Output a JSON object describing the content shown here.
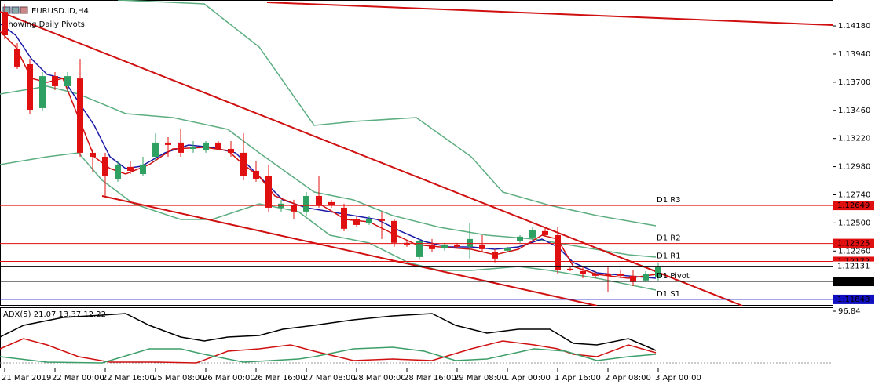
{
  "chart_data": {
    "type": "candlestick",
    "title": "EURUSD.ID,H4",
    "subtitle": "Showing Daily Pivots.",
    "categories": [
      "21 Mar 2019",
      null,
      null,
      null,
      "22 Mar 00:00",
      null,
      null,
      null,
      "22 Mar 16:00",
      null,
      null,
      null,
      "25 Mar 08:00",
      null,
      null,
      null,
      "26 Mar 00:00",
      null,
      null,
      null,
      "26 Mar 16:00",
      null,
      null,
      null,
      "27 Mar 08:00",
      null,
      null,
      null,
      "28 Mar 00:00",
      null,
      null,
      null,
      "28 Mar 16:00",
      null,
      null,
      null,
      "29 Mar 08:00",
      null,
      null,
      null,
      "1 Apr 00:00",
      null,
      null,
      null,
      "1 Apr 16:00",
      null,
      null,
      null,
      "2 Apr 08:00",
      null,
      null,
      null,
      "3 Apr 00:00"
    ],
    "open": [
      1.143,
      1.13986,
      1.13853,
      1.13479,
      1.13752,
      1.13666,
      1.13732,
      1.13098,
      1.13064,
      1.12877,
      1.12978,
      1.12917,
      1.13064,
      1.13185,
      1.13185,
      1.13131,
      1.13118,
      1.13185,
      1.13131,
      1.13098,
      1.12944,
      1.12897,
      1.1263,
      1.1265,
      1.12597,
      1.1273,
      1.12677,
      1.1263,
      1.1253,
      1.12497,
      1.1253,
      1.12517,
      1.1233,
      1.12209,
      1.12316,
      1.12283,
      1.12316,
      1.12296,
      1.12316,
      1.12249,
      1.12263,
      1.12343,
      1.12376,
      1.1243,
      1.12396,
      1.12109,
      1.12089,
      1.12062,
      1.12062,
      1.12062,
      1.12049,
      1.12009,
      1.12042
    ],
    "high": [
      1.14367,
      1.14033,
      1.13899,
      1.13786,
      1.13786,
      1.13786,
      1.13899,
      1.13131,
      1.13098,
      1.13031,
      1.13031,
      1.13064,
      1.13265,
      1.13231,
      1.13298,
      1.13198,
      1.13198,
      1.13198,
      1.13198,
      1.13265,
      1.13031,
      1.12998,
      1.12697,
      1.12697,
      1.12764,
      1.12897,
      1.12697,
      1.12664,
      1.12563,
      1.12563,
      1.12597,
      1.1253,
      1.12343,
      1.12363,
      1.12363,
      1.1233,
      1.1233,
      1.12497,
      1.12396,
      1.12276,
      1.12296,
      1.12396,
      1.12463,
      1.12463,
      1.12463,
      1.12129,
      1.12129,
      1.12089,
      1.12129,
      1.12096,
      1.12096,
      1.12089,
      1.12163
    ],
    "low": [
      1.14066,
      1.13813,
      1.13432,
      1.13452,
      1.13632,
      1.13632,
      1.13064,
      1.12931,
      1.1273,
      1.12851,
      1.12917,
      1.12897,
      1.13031,
      1.13064,
      1.13064,
      1.13098,
      1.13098,
      1.13118,
      1.13064,
      1.12864,
      1.12851,
      1.12597,
      1.12597,
      1.1253,
      1.12563,
      1.1263,
      1.1263,
      1.1243,
      1.12463,
      1.12483,
      1.12363,
      1.12296,
      1.12296,
      1.12183,
      1.12249,
      1.12263,
      1.12283,
      1.12196,
      1.12249,
      1.12163,
      1.12249,
      1.1233,
      1.12343,
      1.12383,
      1.12062,
      1.12089,
      1.12029,
      1.12029,
      1.11915,
      1.12029,
      1.11962,
      1.11996,
      1.12009
    ],
    "close": [
      1.141,
      1.13833,
      1.13465,
      1.13752,
      1.13666,
      1.13752,
      1.13098,
      1.13064,
      1.12897,
      1.12998,
      1.12944,
      1.12998,
      1.13185,
      1.13165,
      1.13098,
      1.13151,
      1.13185,
      1.13131,
      1.13098,
      1.12897,
      1.12877,
      1.1263,
      1.12664,
      1.12597,
      1.1273,
      1.1265,
      1.1265,
      1.1245,
      1.12483,
      1.1253,
      1.12517,
      1.1233,
      1.12316,
      1.12343,
      1.12276,
      1.12316,
      1.12296,
      1.12363,
      1.12276,
      1.12196,
      1.12289,
      1.12383,
      1.12437,
      1.12396,
      1.12096,
      1.12096,
      1.12062,
      1.12049,
      1.12049,
      1.12049,
      1.11996,
      1.12062,
      1.12129
    ],
    "up_color": "#2ea062",
    "down_color": "#e01010",
    "ylim": [
      1.11794,
      1.14401
    ],
    "yticks": [
      {
        "value": 1.1418,
        "label": "1.14180"
      },
      {
        "value": 1.1394,
        "label": "1.13940"
      },
      {
        "value": 1.137,
        "label": "1.13700"
      },
      {
        "value": 1.1346,
        "label": "1.13460"
      },
      {
        "value": 1.1322,
        "label": "1.13220"
      },
      {
        "value": 1.1298,
        "label": "1.12980"
      },
      {
        "value": 1.1274,
        "label": "1.12740"
      },
      {
        "value": 1.125,
        "label": "1.12500"
      },
      {
        "value": 1.1226,
        "label": "1.12260"
      }
    ],
    "pivots": [
      {
        "name": "D1 R3",
        "value": 1.12649,
        "color": "#e01010"
      },
      {
        "name": "D1 R2",
        "value": 1.12325,
        "color": "#e01010"
      },
      {
        "name": "D1 R1",
        "value": 1.12172,
        "color": "#e01010"
      },
      {
        "name": "D1 Pivot",
        "value": 1.12001,
        "color": "#000000"
      },
      {
        "name": "D1 S1",
        "value": 1.11848,
        "color": "#1010c0"
      }
    ],
    "current_price": 1.12131,
    "adx": {
      "title": "ADX(5) 21.07 13.37 12.22",
      "ylim": [
        -10,
        102.7
      ],
      "yticks": [
        96.84
      ]
    }
  }
}
